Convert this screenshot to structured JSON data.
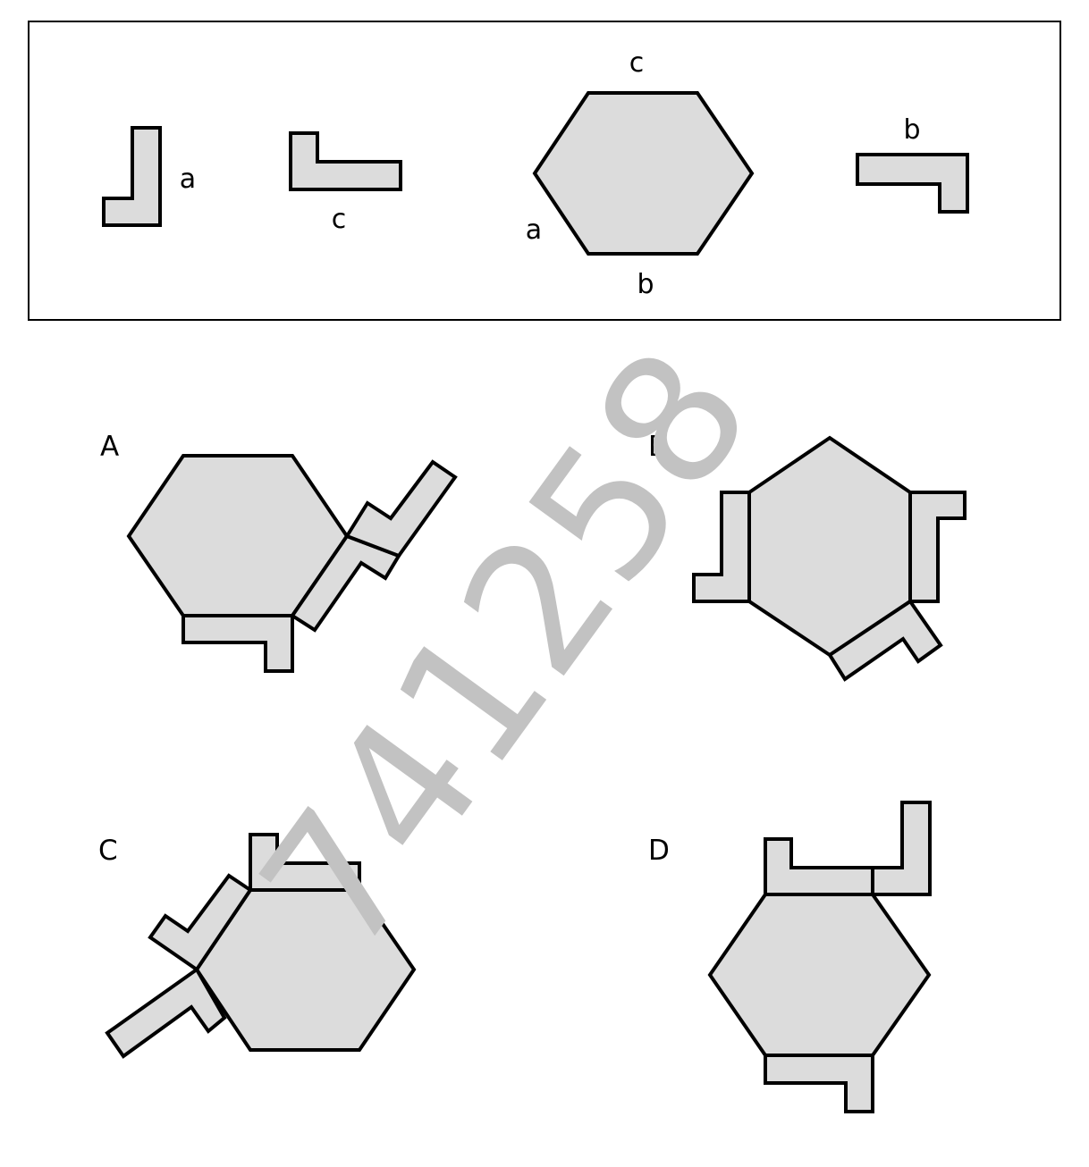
{
  "reference": {
    "edge_label_a": "a",
    "edge_label_b": "b",
    "edge_label_c": "c",
    "piece_labels": [
      "a",
      "c",
      "b"
    ]
  },
  "options": [
    {
      "label": "A"
    },
    {
      "label": "B"
    },
    {
      "label": "C"
    },
    {
      "label": "D"
    }
  ],
  "watermark": "741258",
  "colors": {
    "shape_fill": "#dcdcdc",
    "stroke": "#000000",
    "watermark": "#c2c2c2"
  }
}
